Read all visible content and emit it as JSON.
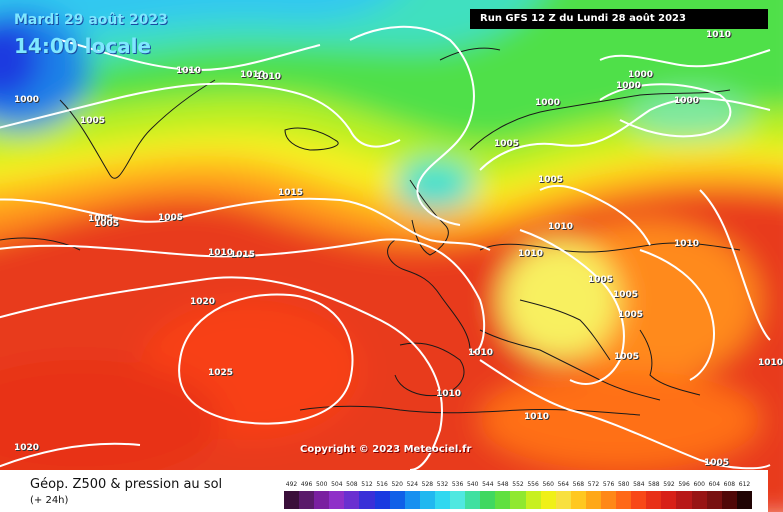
{
  "header": {
    "date": "Mardi 29 août 2023",
    "time": "14:00 locale",
    "run": "Run GFS 12 Z du Lundi 28 août 2023"
  },
  "copyright": "Copyright © 2023 Meteociel.fr",
  "footer": {
    "caption": "Géop. Z500 & pression au sol",
    "subcaption": "(+ 24h)"
  },
  "isobar_labels": [
    "1010",
    "1010",
    "1010",
    "1000",
    "1000",
    "1000",
    "1000",
    "1010",
    "1000",
    "1005",
    "1005",
    "1005",
    "1015",
    "1005",
    "1005",
    "1005",
    "1010",
    "1010",
    "1015",
    "1010",
    "1010",
    "1020",
    "1005",
    "1005",
    "1005",
    "1010",
    "1005",
    "1010",
    "1025",
    "1010",
    "1010",
    "1020",
    "1005"
  ],
  "colorscale": {
    "ticks": [
      "492",
      "496",
      "500",
      "504",
      "508",
      "512",
      "516",
      "520",
      "524",
      "528",
      "532",
      "536",
      "540",
      "544",
      "548",
      "552",
      "556",
      "560",
      "564",
      "568",
      "572",
      "576",
      "580",
      "584",
      "588",
      "592",
      "596",
      "600",
      "604",
      "608",
      "612"
    ],
    "colors": [
      "#3a0f3a",
      "#5a1a6a",
      "#7a1fa0",
      "#8f2fc8",
      "#6a2fd0",
      "#3a2fd8",
      "#1a3ae0",
      "#1060e8",
      "#1890f0",
      "#20b8f0",
      "#30d8f0",
      "#50e8e0",
      "#40e0a0",
      "#40d860",
      "#60e040",
      "#90e830",
      "#c8f020",
      "#f0f018",
      "#f8e040",
      "#ffc820",
      "#ffa818",
      "#ff8818",
      "#ff6818",
      "#f84818",
      "#e83018",
      "#d82018",
      "#b81818",
      "#981414",
      "#781010",
      "#500808",
      "#200404"
    ]
  }
}
